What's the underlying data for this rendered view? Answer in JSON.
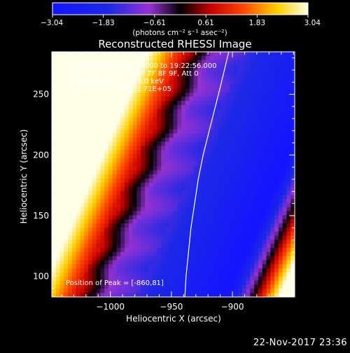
{
  "chart_data": {
    "type": "heatmap",
    "title": "Reconstructed RHESSI Image",
    "xlabel": "Heliocentric X (arcsec)",
    "ylabel": "Heliocentric Y (arcsec)",
    "xlim": [
      -1048,
      -849
    ],
    "ylim": [
      83,
      285
    ],
    "x_ticks": [
      -1000,
      -950,
      -900
    ],
    "x_tick_labels": [
      "−1000",
      "−950",
      "−900"
    ],
    "y_ticks": [
      100,
      150,
      200,
      250
    ],
    "y_tick_labels": [
      "100",
      "150",
      "200",
      "250"
    ],
    "grid": false,
    "colorbar": {
      "range": [
        -3.04,
        3.04
      ],
      "ticks": [
        -3.04,
        -1.83,
        -0.61,
        0.61,
        1.83,
        3.04
      ],
      "tick_labels": [
        "−3.04",
        "−1.83",
        "−0.61",
        "0.61",
        "1.83",
        "3.04"
      ],
      "units": "(photons cm⁻² s⁻¹ asec⁻²)"
    },
    "annotations": {
      "line1": "15-Jun-2002 19:22:56.000 to 19:22:56.000",
      "line2": "Detectors: 3F 4F 5F 6F 7F 8F 9F, Att 0",
      "line3": "Energy Range: 3.0 - 6.0 keV",
      "line4": "Clean, Total counts: 1.71E+05",
      "peak": "Position of Peak = [-860,81]"
    },
    "limb_curve": [
      [
        -939,
        83
      ],
      [
        -938,
        100
      ],
      [
        -936,
        120
      ],
      [
        -934,
        140
      ],
      [
        -931,
        160
      ],
      [
        -928,
        180
      ],
      [
        -924,
        200
      ],
      [
        -919,
        220
      ],
      [
        -914,
        240
      ],
      [
        -909,
        260
      ],
      [
        -903,
        285
      ]
    ]
  },
  "colors": {
    "background": "#000000",
    "foreground": "#ffffff"
  },
  "footer": {
    "date": "22-Nov-2017 23:36"
  }
}
